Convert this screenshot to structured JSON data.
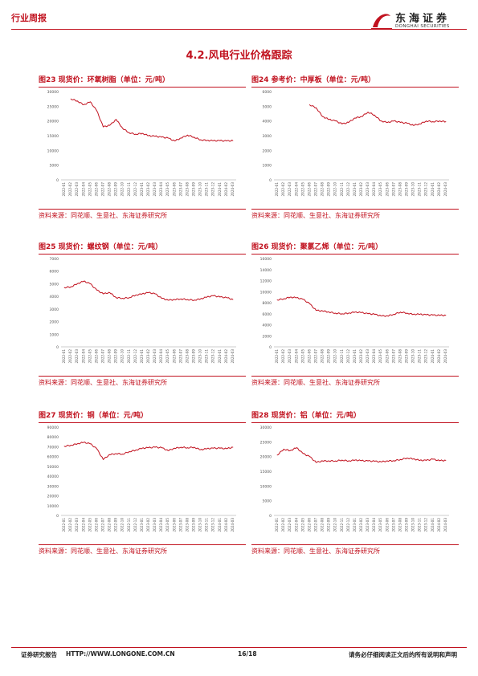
{
  "header": {
    "tag": "行业周报",
    "logo_cn": "东海证券",
    "logo_en": "DONGHAI SECURITIES"
  },
  "section_title": "4.2.风电行业价格跟踪",
  "panels": [
    {
      "title": "图23  现货价：环氧树脂（单位：元/吨）",
      "source": "资料来源：同花顺、生意社、东海证券研究所"
    },
    {
      "title": "图24  参考价：中厚板（单位：元/吨）",
      "source": "资料来源：同花顺、生意社、东海证券研究所"
    },
    {
      "title": "图25  现货价：螺纹钢（单位：元/吨）",
      "source": "资料来源：同花顺、生意社、东海证券研究所"
    },
    {
      "title": "图26  现货价：聚氯乙烯（单位：元/吨）",
      "source": "资料来源：同花顺、生意社、东海证券研究所"
    },
    {
      "title": "图27  现货价：铜（单位：元/吨）",
      "source": "资料来源：同花顺、生意社、东海证券研究所"
    },
    {
      "title": "图28  现货价：铝（单位：元/吨）",
      "source": "资料来源：同花顺、生意社、东海证券研究所"
    }
  ],
  "footer": {
    "left": "证券研究报告",
    "url": "HTTP://WWW.LONGONE.COM.CN",
    "page": "16/18",
    "right": "请务必仔细阅读正文后的所有说明和声明"
  },
  "colors": {
    "accent": "#c1121f",
    "line": "#c1121f"
  },
  "chart_data": [
    {
      "type": "line",
      "name": "环氧树脂",
      "ylim": [
        0,
        30000
      ],
      "yticks": [
        0,
        5000,
        10000,
        15000,
        20000,
        25000,
        30000
      ],
      "xticks": [
        "2022-01",
        "2022-02",
        "2022-03",
        "2022-04",
        "2022-05",
        "2022-06",
        "2022-07",
        "2022-08",
        "2022-09",
        "2022-10",
        "2022-11",
        "2022-12",
        "2023-01",
        "2023-02",
        "2023-03",
        "2023-04",
        "2023-05",
        "2023-06",
        "2023-07",
        "2023-08",
        "2023-09",
        "2023-10",
        "2023-11",
        "2023-12",
        "2024-01",
        "2024-02",
        "2024-03"
      ],
      "x": [
        "2022-02",
        "2022-03",
        "2022-04",
        "2022-05",
        "2022-06",
        "2022-07",
        "2022-08",
        "2022-09",
        "2022-10",
        "2022-11",
        "2022-12",
        "2023-01",
        "2023-02",
        "2023-03",
        "2023-04",
        "2023-05",
        "2023-06",
        "2023-07",
        "2023-08",
        "2023-09",
        "2023-10",
        "2023-11",
        "2023-12",
        "2024-01",
        "2024-02",
        "2024-03"
      ],
      "values": [
        27500,
        26800,
        25500,
        26500,
        23500,
        18000,
        18500,
        20500,
        17500,
        16000,
        15500,
        15800,
        15000,
        14800,
        14500,
        14200,
        13200,
        14200,
        15200,
        14500,
        13600,
        13400,
        13300,
        13300,
        13200,
        13300
      ]
    },
    {
      "type": "line",
      "name": "中厚板",
      "ylim": [
        0,
        6000
      ],
      "yticks": [
        0,
        1000,
        2000,
        3000,
        4000,
        5000,
        6000
      ],
      "xticks": [
        "2022-01",
        "2022-02",
        "2022-03",
        "2022-04",
        "2022-05",
        "2022-06",
        "2022-07",
        "2022-08",
        "2022-09",
        "2022-10",
        "2022-11",
        "2022-12",
        "2023-01",
        "2023-02",
        "2023-03",
        "2023-04",
        "2023-05",
        "2023-06",
        "2023-07",
        "2023-08",
        "2023-09",
        "2023-10",
        "2023-11",
        "2023-12",
        "2024-01",
        "2024-02",
        "2024-03"
      ],
      "x": [
        "2022-06",
        "2022-07",
        "2022-08",
        "2022-09",
        "2022-10",
        "2022-11",
        "2022-12",
        "2023-01",
        "2023-02",
        "2023-03",
        "2023-04",
        "2023-05",
        "2023-06",
        "2023-07",
        "2023-08",
        "2023-09",
        "2023-10",
        "2023-11",
        "2023-12",
        "2024-01",
        "2024-02",
        "2024-03"
      ],
      "values": [
        5100,
        4900,
        4300,
        4100,
        4000,
        3800,
        3900,
        4200,
        4300,
        4600,
        4400,
        4000,
        3900,
        4000,
        3900,
        3850,
        3700,
        3800,
        4000,
        3950,
        4000,
        3950
      ]
    },
    {
      "type": "line",
      "name": "螺纹钢",
      "ylim": [
        0,
        7000
      ],
      "yticks": [
        0,
        1000,
        2000,
        3000,
        4000,
        5000,
        6000,
        7000
      ],
      "xticks": [
        "2022-01",
        "2022-02",
        "2022-03",
        "2022-04",
        "2022-05",
        "2022-06",
        "2022-07",
        "2022-08",
        "2022-09",
        "2022-10",
        "2022-11",
        "2022-12",
        "2023-01",
        "2023-02",
        "2023-03",
        "2023-04",
        "2023-05",
        "2023-06",
        "2023-07",
        "2023-08",
        "2023-09",
        "2023-10",
        "2023-11",
        "2023-12",
        "2024-01",
        "2024-02",
        "2024-03"
      ],
      "x": [
        "2022-01",
        "2022-02",
        "2022-03",
        "2022-04",
        "2022-05",
        "2022-06",
        "2022-07",
        "2022-08",
        "2022-09",
        "2022-10",
        "2022-11",
        "2022-12",
        "2023-01",
        "2023-02",
        "2023-03",
        "2023-04",
        "2023-05",
        "2023-06",
        "2023-07",
        "2023-08",
        "2023-09",
        "2023-10",
        "2023-11",
        "2023-12",
        "2024-01",
        "2024-02",
        "2024-03"
      ],
      "values": [
        4700,
        4750,
        5000,
        5200,
        5000,
        4500,
        4200,
        4300,
        3900,
        3850,
        3900,
        4100,
        4200,
        4300,
        4200,
        3850,
        3700,
        3750,
        3800,
        3750,
        3700,
        3800,
        3950,
        4050,
        3950,
        3900,
        3750
      ]
    },
    {
      "type": "line",
      "name": "聚氯乙烯",
      "ylim": [
        0,
        16000
      ],
      "yticks": [
        0,
        2000,
        4000,
        6000,
        8000,
        10000,
        12000,
        14000,
        16000
      ],
      "xticks": [
        "2022-01",
        "2022-02",
        "2022-03",
        "2022-04",
        "2022-05",
        "2022-06",
        "2022-07",
        "2022-08",
        "2022-09",
        "2022-10",
        "2022-11",
        "2022-12",
        "2023-01",
        "2023-02",
        "2023-03",
        "2023-04",
        "2023-05",
        "2023-06",
        "2023-07",
        "2023-08",
        "2023-09",
        "2023-10",
        "2023-11",
        "2023-12",
        "2024-01",
        "2024-02",
        "2024-03"
      ],
      "x": [
        "2022-01",
        "2022-02",
        "2022-03",
        "2022-04",
        "2022-05",
        "2022-06",
        "2022-07",
        "2022-08",
        "2022-09",
        "2022-10",
        "2022-11",
        "2022-12",
        "2023-01",
        "2023-02",
        "2023-03",
        "2023-04",
        "2023-05",
        "2023-06",
        "2023-07",
        "2023-08",
        "2023-09",
        "2023-10",
        "2023-11",
        "2023-12",
        "2024-01",
        "2024-02",
        "2024-03"
      ],
      "values": [
        8500,
        8700,
        9000,
        8900,
        8600,
        7800,
        6600,
        6500,
        6300,
        6100,
        6000,
        6100,
        6300,
        6200,
        6000,
        5900,
        5600,
        5600,
        5900,
        6300,
        6100,
        5900,
        5900,
        5800,
        5750,
        5700,
        5700
      ]
    },
    {
      "type": "line",
      "name": "铜",
      "ylim": [
        0,
        90000
      ],
      "yticks": [
        0,
        10000,
        20000,
        30000,
        40000,
        50000,
        60000,
        70000,
        80000,
        90000
      ],
      "xticks": [
        "2022-01",
        "2022-02",
        "2022-03",
        "2022-04",
        "2022-05",
        "2022-06",
        "2022-07",
        "2022-08",
        "2022-09",
        "2022-10",
        "2022-11",
        "2022-12",
        "2023-01",
        "2023-02",
        "2023-03",
        "2023-04",
        "2023-05",
        "2023-06",
        "2023-07",
        "2023-08",
        "2023-09",
        "2023-10",
        "2023-11",
        "2023-12",
        "2024-01",
        "2024-02",
        "2024-03"
      ],
      "x": [
        "2022-01",
        "2022-02",
        "2022-03",
        "2022-04",
        "2022-05",
        "2022-06",
        "2022-07",
        "2022-08",
        "2022-09",
        "2022-10",
        "2022-11",
        "2022-12",
        "2023-01",
        "2023-02",
        "2023-03",
        "2023-04",
        "2023-05",
        "2023-06",
        "2023-07",
        "2023-08",
        "2023-09",
        "2023-10",
        "2023-11",
        "2023-12",
        "2024-01",
        "2024-02",
        "2024-03"
      ],
      "values": [
        70500,
        71500,
        73000,
        74500,
        73000,
        68000,
        57000,
        62000,
        63000,
        62500,
        65000,
        66500,
        68500,
        69000,
        69500,
        69000,
        66000,
        68500,
        69500,
        69000,
        69500,
        67000,
        68000,
        68500,
        68500,
        68000,
        69500
      ]
    },
    {
      "type": "line",
      "name": "铝",
      "ylim": [
        0,
        30000
      ],
      "yticks": [
        0,
        5000,
        10000,
        15000,
        20000,
        25000,
        30000
      ],
      "xticks": [
        "2022-01",
        "2022-02",
        "2022-03",
        "2022-04",
        "2022-05",
        "2022-06",
        "2022-07",
        "2022-08",
        "2022-09",
        "2022-10",
        "2022-11",
        "2022-12",
        "2023-01",
        "2023-02",
        "2023-03",
        "2023-04",
        "2023-05",
        "2023-06",
        "2023-07",
        "2023-08",
        "2023-09",
        "2023-10",
        "2023-11",
        "2023-12",
        "2024-01",
        "2024-02",
        "2024-03"
      ],
      "x": [
        "2022-01",
        "2022-02",
        "2022-03",
        "2022-04",
        "2022-05",
        "2022-06",
        "2022-07",
        "2022-08",
        "2022-09",
        "2022-10",
        "2022-11",
        "2022-12",
        "2023-01",
        "2023-02",
        "2023-03",
        "2023-04",
        "2023-05",
        "2023-06",
        "2023-07",
        "2023-08",
        "2023-09",
        "2023-10",
        "2023-11",
        "2023-12",
        "2024-01",
        "2024-02",
        "2024-03"
      ],
      "values": [
        20500,
        22500,
        22000,
        23000,
        21000,
        20000,
        18000,
        18500,
        18500,
        18500,
        18800,
        18500,
        18800,
        18600,
        18500,
        18400,
        18200,
        18500,
        18600,
        19000,
        19500,
        19200,
        18700,
        18700,
        19100,
        18600,
        18700
      ]
    }
  ]
}
